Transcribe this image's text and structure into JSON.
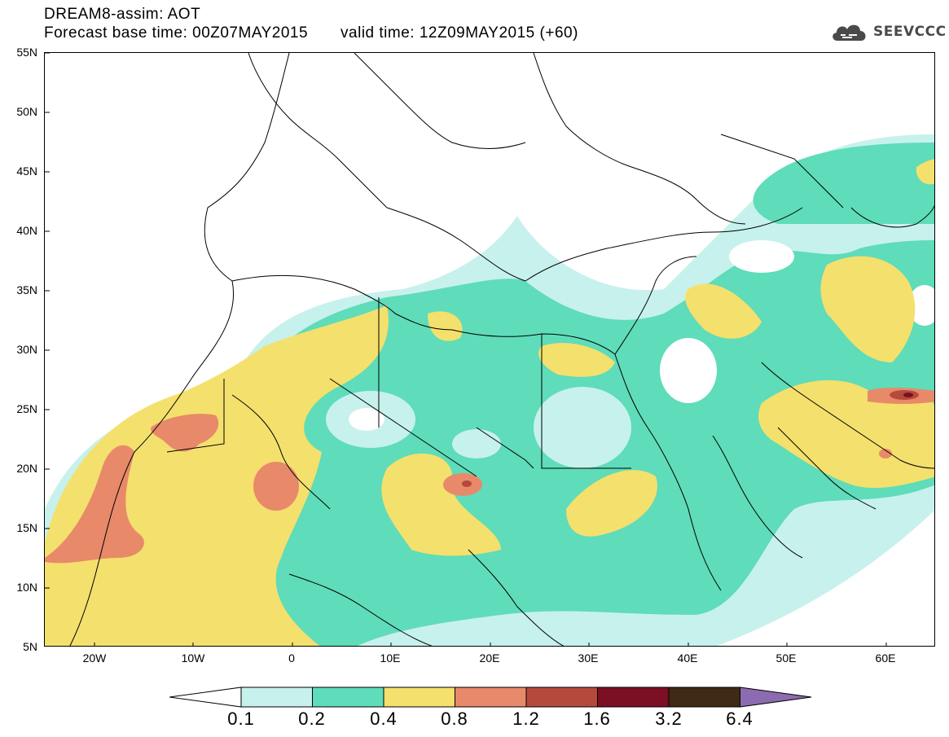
{
  "header": {
    "title": "DREAM8-assim: AOT",
    "base_time": "Forecast base time: 00Z07MAY2015",
    "valid_time": "valid time: 12Z09MAY2015 (+60)"
  },
  "logo": {
    "text": "SEEVCCC",
    "icon": "cloud-icon"
  },
  "map": {
    "lat_ticks": [
      "55N",
      "50N",
      "45N",
      "40N",
      "35N",
      "30N",
      "25N",
      "20N",
      "15N",
      "10N",
      "5N"
    ],
    "lon_ticks": [
      "20W",
      "10W",
      "0",
      "10E",
      "20E",
      "30E",
      "40E",
      "50E",
      "60E"
    ],
    "extent": {
      "lon_min": -25,
      "lon_max": 65,
      "lat_min": 5,
      "lat_max": 55
    }
  },
  "legend": {
    "colors": [
      "#c7f1ec",
      "#5fdcb9",
      "#f4e06d",
      "#e8896a",
      "#b54a3c",
      "#7b0f24",
      "#3f2a16"
    ],
    "under_color": "#ffffff",
    "over_color": "#8c6bb0",
    "labels": [
      "0.1",
      "0.2",
      "0.4",
      "0.8",
      "1.2",
      "1.6",
      "3.2",
      "6.4"
    ]
  }
}
